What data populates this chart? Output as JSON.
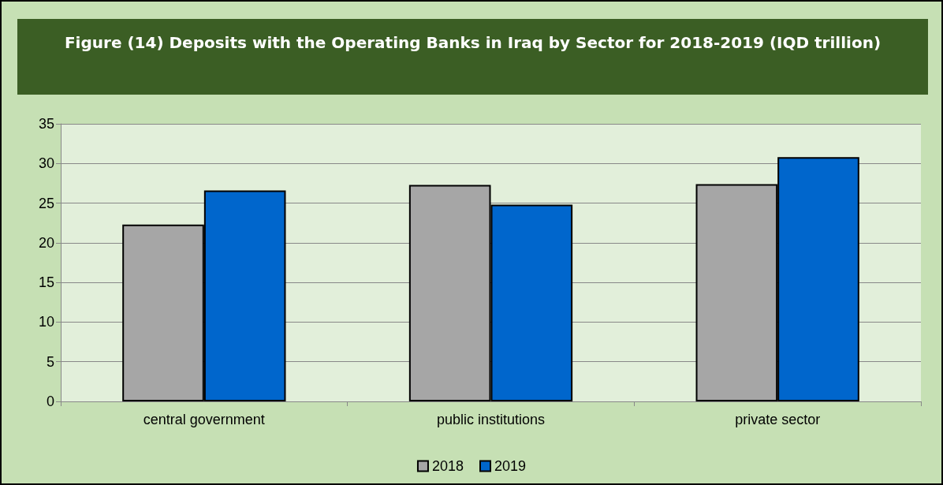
{
  "chart_data": {
    "type": "bar",
    "title": "Figure (14) Deposits with the Operating Banks in Iraq by Sector for 2018-2019 (IQD trillion)",
    "categories": [
      "central government",
      "public institutions",
      "private sector"
    ],
    "series": [
      {
        "name": "2018",
        "color": "#a6a6a6",
        "values": [
          22.3,
          27.3,
          27.4
        ]
      },
      {
        "name": "2019",
        "color": "#0066cc",
        "values": [
          26.6,
          24.8,
          30.8
        ]
      }
    ],
    "ylim": [
      0,
      35
    ],
    "yticks": [
      0,
      5,
      10,
      15,
      20,
      25,
      30,
      35
    ],
    "grid": "y",
    "legend": "bottom"
  }
}
